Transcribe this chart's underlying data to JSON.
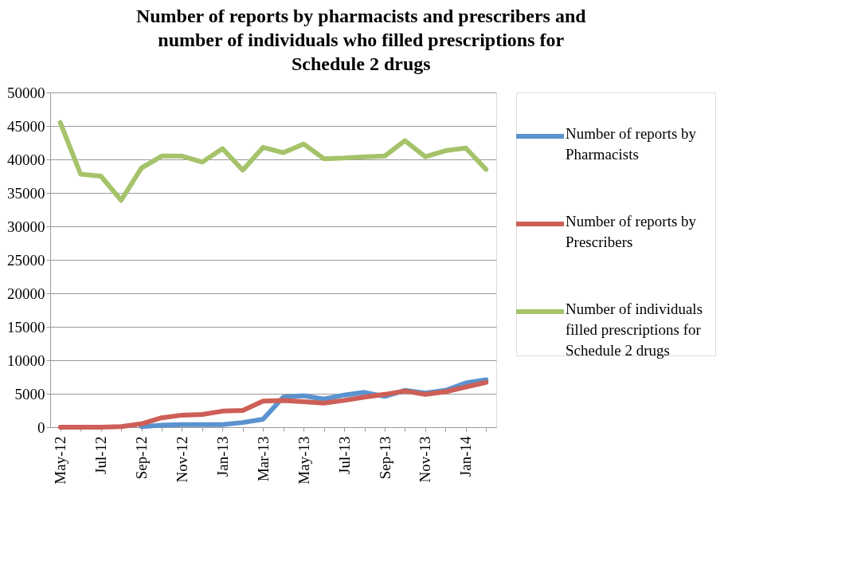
{
  "chart_data": {
    "type": "line",
    "title": "Number of reports by pharmacists and prescribers and number of individuals who filled prescriptions for Schedule 2 drugs",
    "categories": [
      "May-12",
      null,
      "Jul-12",
      null,
      "Sep-12",
      null,
      "Nov-12",
      null,
      "Jan-13",
      null,
      "Mar-13",
      null,
      "May-13",
      null,
      "Jul-13",
      null,
      "Sep-13",
      null,
      "Nov-13",
      null,
      "Jan-14",
      null
    ],
    "series": [
      {
        "name": "Number of reports by Pharmacists",
        "color": "#5b93cf",
        "values": [
          null,
          null,
          null,
          null,
          100,
          300,
          400,
          400,
          400,
          700,
          1200,
          4500,
          4700,
          4200,
          4800,
          5200,
          4600,
          5500,
          5100,
          5500,
          6600,
          7100
        ]
      },
      {
        "name": "Number of reports by Prescribers",
        "color": "#cd5f57",
        "values": [
          0,
          0,
          0,
          100,
          500,
          1400,
          1800,
          1900,
          2400,
          2500,
          3900,
          4000,
          3800,
          3600,
          4000,
          4500,
          4900,
          5400,
          4900,
          5300,
          6000,
          6700
        ]
      },
      {
        "name": "Number of individuals filled prescriptions for Schedule 2 drugs",
        "color": "#a5c36a",
        "values": [
          45500,
          37800,
          37500,
          33900,
          38700,
          40500,
          40500,
          39600,
          41600,
          38400,
          41800,
          41000,
          42300,
          40100,
          40200,
          40400,
          40500,
          42800,
          40400,
          41300,
          41700,
          38500
        ]
      }
    ],
    "ylim": [
      0,
      50000
    ],
    "yticks": [
      0,
      5000,
      10000,
      15000,
      20000,
      25000,
      30000,
      35000,
      40000,
      45000,
      50000
    ],
    "grid": "y",
    "legend": "right",
    "marker": "none",
    "line_style": "solid"
  }
}
